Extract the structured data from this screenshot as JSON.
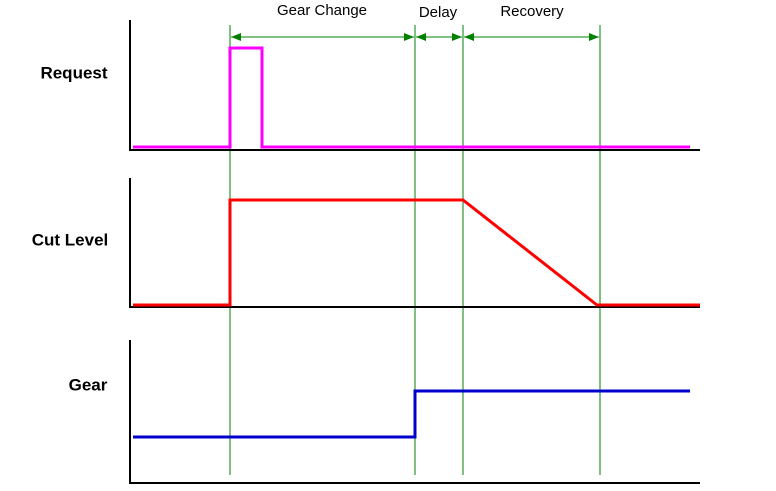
{
  "phases": [
    "Gear Change",
    "Delay",
    "Recovery"
  ],
  "signals": [
    "Request",
    "Cut Level",
    "Gear"
  ]
}
